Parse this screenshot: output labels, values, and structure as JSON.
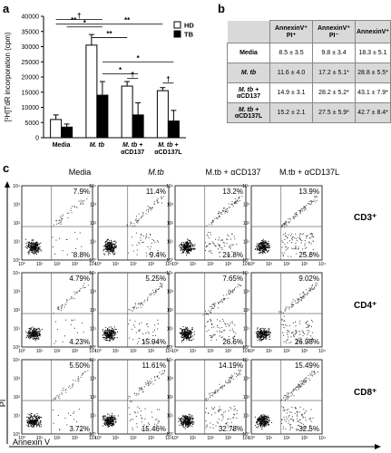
{
  "panels": {
    "a": "a",
    "b": "b",
    "c": "c"
  },
  "chart_data": [
    {
      "type": "bar",
      "ylabel": "[³H]TdR incorporation (cpm)",
      "ylim": [
        0,
        40000
      ],
      "yticks": [
        "0",
        "5000",
        "10000",
        "15000",
        "20000",
        "25000",
        "30000",
        "35000",
        "40000"
      ],
      "categories": [
        "Media",
        "M. tb",
        "M. tb + αCD137",
        "M. tb + αCD137L"
      ],
      "category_lines": [
        [
          "Media"
        ],
        [
          "M. tb"
        ],
        [
          "M. tb +",
          "αCD137"
        ],
        [
          "M. tb +",
          "αCD137L"
        ]
      ],
      "legend": [
        "HD",
        "TB"
      ],
      "series": [
        {
          "name": "HD",
          "color": "#ffffff",
          "values": [
            6000,
            30500,
            17000,
            15500
          ],
          "errors": [
            1500,
            3500,
            1500,
            1000
          ]
        },
        {
          "name": "TB",
          "color": "#000000",
          "values": [
            3500,
            14000,
            7500,
            5500
          ],
          "errors": [
            1000,
            4500,
            4000,
            3500
          ]
        }
      ],
      "significance": [
        {
          "from": 0,
          "from_series": 0,
          "to": 1,
          "to_series": 0,
          "label": "**",
          "y": 37500
        },
        {
          "from": 0,
          "from_series": 1,
          "to": 1,
          "to_series": 1,
          "label": "*",
          "y": 36500
        },
        {
          "from": 0,
          "from_series": 0,
          "to": 1,
          "to_series": 1,
          "label": "†",
          "y": 39000
        },
        {
          "from": 1,
          "from_series": 0,
          "to": 2,
          "to_series": 0,
          "label": "**",
          "y": 33000
        },
        {
          "from": 1,
          "from_series": 0,
          "to": 3,
          "to_series": 0,
          "label": "**",
          "y": 37500
        },
        {
          "from": 1,
          "from_series": 1,
          "to": 3,
          "to_series": 1,
          "label": "*",
          "y": 25000
        },
        {
          "from": 1,
          "from_series": 1,
          "to": 2,
          "to_series": 1,
          "label": "*",
          "y": 21000
        },
        {
          "from": 2,
          "from_series": 0,
          "to": 2,
          "to_series": 1,
          "label": "†",
          "y": 19500
        },
        {
          "from": 3,
          "from_series": 0,
          "to": 3,
          "to_series": 1,
          "label": "†",
          "y": 18000
        }
      ]
    },
    {
      "type": "table",
      "headers": [
        "AnnexinV⁺ PI⁺",
        "AnnexinV⁺ PI⁻",
        "AnnexinV⁺"
      ],
      "rows": [
        {
          "lines": [
            "Media"
          ],
          "cells": [
            "8.5 ± 3.5",
            "9.8 ± 3.4",
            "18.3 ± 5.1"
          ]
        },
        {
          "lines": [
            "M. tb"
          ],
          "cells": [
            "11.6 ± 4.0",
            "17.2 ± 5.1*",
            "28.8 ± 5.5*"
          ]
        },
        {
          "lines": [
            "M. tb +",
            "αCD137"
          ],
          "cells": [
            "14.9 ± 3.1",
            "28.2 ± 5.2*",
            "43.1 ± 7.9*"
          ]
        },
        {
          "lines": [
            "M. tb +",
            "αCD137L"
          ],
          "cells": [
            "15.2 ± 2.1",
            "27.5 ± 5.9*",
            "42.7 ± 8.4*"
          ]
        }
      ]
    },
    {
      "type": "scatter",
      "xlabel": "Annexin V",
      "ylabel": "PI",
      "column_titles": [
        "Media",
        "M.tb",
        "M.tb + αCD137",
        "M.tb + αCD137L"
      ],
      "row_labels": [
        "CD3⁺",
        "CD4⁺",
        "CD8⁺"
      ],
      "axis_ticks": [
        "10⁰",
        "10¹",
        "10²",
        "10³",
        "10⁴"
      ],
      "quadrant_percent": {
        "upper_right": [
          [
            "7.9%",
            "11.4%",
            "13.2%",
            "13.9%"
          ],
          [
            "4.79%",
            "5.25%",
            "7.65%",
            "9.02%"
          ],
          [
            "5.50%",
            "11.61%",
            "14.19%",
            "15.49%"
          ]
        ],
        "lower_right": [
          [
            "8.8%",
            "9.4%",
            "21.8%",
            "25.6%"
          ],
          [
            "4.23%",
            "15.94%",
            "26.6%",
            "26.98%"
          ],
          [
            "3.72%",
            "15.46%",
            "32.78%",
            "32.5%"
          ]
        ]
      }
    }
  ]
}
